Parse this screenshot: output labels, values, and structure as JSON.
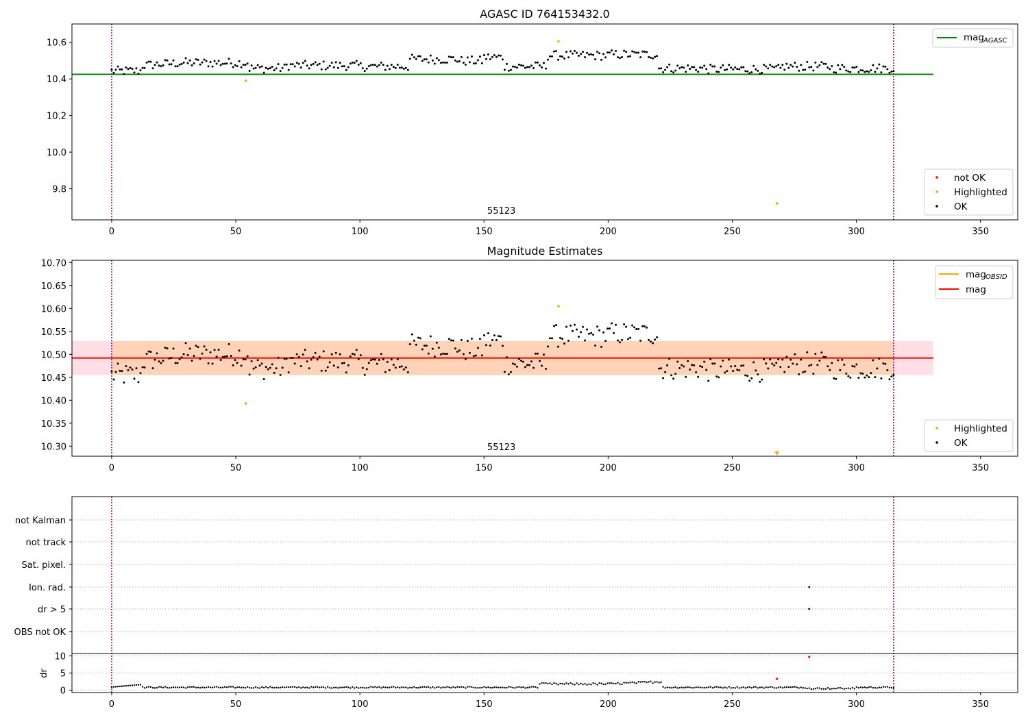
{
  "chart_data": [
    {
      "type": "scatter",
      "title": "AGASC ID 764153432.0",
      "xlim": [
        -16,
        365
      ],
      "ylim": [
        9.63,
        10.7
      ],
      "xticks": [
        0,
        50,
        100,
        150,
        200,
        250,
        300,
        350
      ],
      "yticks": [
        9.8,
        10.0,
        10.2,
        10.4,
        10.6
      ],
      "ytick_labels": [
        "9.8",
        "10.0",
        "10.2",
        "10.4",
        "10.6"
      ],
      "obsid_label": "55123",
      "obsid_label_x": 157,
      "vlines": [
        0,
        315
      ],
      "lines": [
        {
          "name": "mag_AGASC",
          "y": 10.425,
          "x_range": [
            -16,
            331
          ],
          "color": "#008000"
        }
      ],
      "highlighted_points": [
        {
          "x": 54,
          "y": 10.39
        },
        {
          "x": 180,
          "y": 10.605
        },
        {
          "x": 268,
          "y": 9.72
        }
      ],
      "legend_upper": {
        "position": "top-right",
        "entries": [
          {
            "label": "mag",
            "sub": "AGASC",
            "color": "#008000",
            "kind": "line"
          }
        ]
      },
      "legend_lower": {
        "position": "bottom-right",
        "entries": [
          {
            "label": "not OK",
            "color": "#ff0000",
            "kind": "dot"
          },
          {
            "label": "Highlighted",
            "color": "#ffa500",
            "kind": "dot"
          },
          {
            "label": "OK",
            "color": "#000000",
            "kind": "dot"
          }
        ]
      },
      "grid": false
    },
    {
      "type": "scatter",
      "title": "Magnitude Estimates",
      "xlim": [
        -16,
        365
      ],
      "ylim": [
        10.278,
        10.705
      ],
      "xticks": [
        0,
        50,
        100,
        150,
        200,
        250,
        300,
        350
      ],
      "yticks": [
        10.3,
        10.35,
        10.4,
        10.45,
        10.5,
        10.55,
        10.6,
        10.65,
        10.7
      ],
      "ytick_labels": [
        "10.30",
        "10.35",
        "10.40",
        "10.45",
        "10.50",
        "10.55",
        "10.60",
        "10.65",
        "10.70"
      ],
      "obsid_label": "55123",
      "obsid_label_x": 157,
      "vlines": [
        0,
        315
      ],
      "mag_line": {
        "name": "mag",
        "y": 10.492,
        "x_range": [
          -16,
          331
        ],
        "color": "#ff0000"
      },
      "mag_band": {
        "y_low": 10.455,
        "y_high": 10.529,
        "x_range": [
          -16,
          331
        ],
        "color": "#ffc0cb"
      },
      "obsid_band": {
        "y_low": 10.455,
        "y_high": 10.529,
        "x_range": [
          0,
          315
        ],
        "color": "#ffa500"
      },
      "obsid_line": {
        "name": "mag_OBSID",
        "y": 10.492,
        "x_range": [
          0,
          315
        ],
        "color": "#ffa500"
      },
      "highlighted_points": [
        {
          "x": 54,
          "y": 10.393
        },
        {
          "x": 180,
          "y": 10.605
        }
      ],
      "offscale_marker": {
        "x": 268,
        "color": "#ffa500"
      },
      "legend_upper": {
        "position": "top-right",
        "entries": [
          {
            "label": "mag",
            "sub": "OBSID",
            "color": "#ffa500",
            "kind": "line"
          },
          {
            "label": "mag",
            "sub": "",
            "color": "#ff0000",
            "kind": "line"
          }
        ]
      },
      "legend_lower": {
        "position": "bottom-right",
        "entries": [
          {
            "label": "Highlighted",
            "color": "#ffa500",
            "kind": "dot"
          },
          {
            "label": "OK",
            "color": "#000000",
            "kind": "dot"
          }
        ]
      },
      "grid": false
    },
    {
      "type": "scatter",
      "title": "",
      "xlim": [
        -16,
        365
      ],
      "xticks": [
        0,
        50,
        100,
        150,
        200,
        250,
        300,
        350
      ],
      "vlines": [
        0,
        315
      ],
      "flag_categories": [
        "not Kalman",
        "not track",
        "Sat. pixel.",
        "Ion. rad.",
        "dr > 5",
        "OBS not OK"
      ],
      "flag_points": [
        {
          "category": "Ion. rad.",
          "x": 281
        },
        {
          "category": "dr > 5",
          "x": 281
        }
      ],
      "dr": {
        "ylabel": "dr",
        "ylim": [
          -0.5,
          10.5
        ],
        "yticks": [
          0,
          5,
          10
        ],
        "ytick_labels": [
          "0",
          "5",
          "10"
        ],
        "red_points": [
          {
            "x": 281,
            "y": 9.7
          },
          {
            "x": 268,
            "y": 3.3
          }
        ]
      },
      "grid": true
    }
  ]
}
